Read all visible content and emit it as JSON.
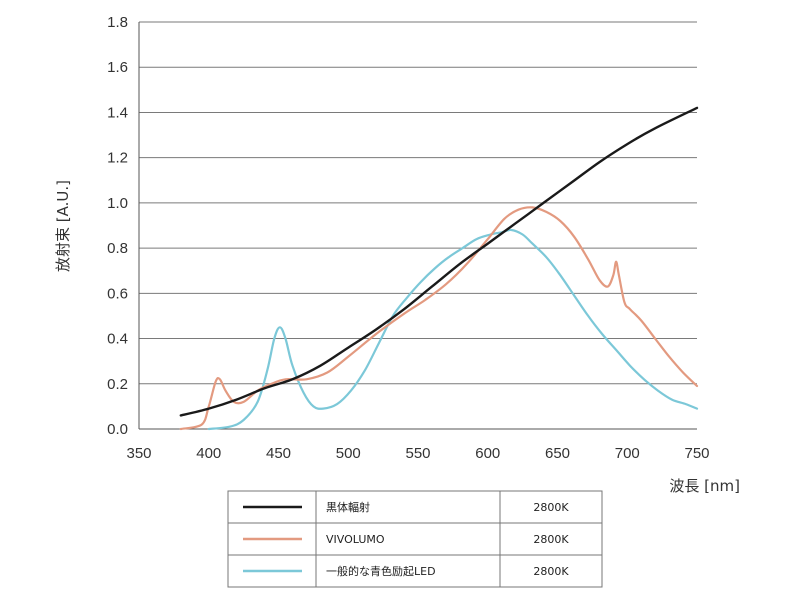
{
  "chart_data": {
    "type": "line",
    "title": "",
    "xlabel": "波長 [nm]",
    "ylabel": "放射束 [A.U.]",
    "xlim": [
      350,
      750
    ],
    "ylim": [
      0,
      1.8
    ],
    "x_ticks": [
      "350",
      "400",
      "450",
      "500",
      "550",
      "600",
      "650",
      "700",
      "750"
    ],
    "y_ticks": [
      "0.0",
      "0.2",
      "0.4",
      "0.6",
      "0.8",
      "1.0",
      "1.2",
      "1.4",
      "1.6",
      "1.8"
    ],
    "grid": "horizontal",
    "legend_position": "bottom-center",
    "series": [
      {
        "name": "黒体輻射",
        "value_label": "2800K",
        "color": "#1a1a1a",
        "points": [
          [
            380,
            0.06
          ],
          [
            400,
            0.09
          ],
          [
            420,
            0.13
          ],
          [
            440,
            0.18
          ],
          [
            460,
            0.22
          ],
          [
            480,
            0.28
          ],
          [
            500,
            0.36
          ],
          [
            520,
            0.44
          ],
          [
            540,
            0.53
          ],
          [
            560,
            0.63
          ],
          [
            580,
            0.73
          ],
          [
            600,
            0.82
          ],
          [
            620,
            0.91
          ],
          [
            640,
            1.0
          ],
          [
            660,
            1.09
          ],
          [
            680,
            1.18
          ],
          [
            700,
            1.26
          ],
          [
            720,
            1.33
          ],
          [
            750,
            1.42
          ]
        ]
      },
      {
        "name": "VIVOLUMO",
        "value_label": "2800K",
        "color": "#e39a80",
        "points": [
          [
            380,
            0.0
          ],
          [
            395,
            0.02
          ],
          [
            400,
            0.1
          ],
          [
            405,
            0.21
          ],
          [
            408,
            0.22
          ],
          [
            412,
            0.17
          ],
          [
            418,
            0.12
          ],
          [
            425,
            0.12
          ],
          [
            435,
            0.17
          ],
          [
            445,
            0.2
          ],
          [
            455,
            0.22
          ],
          [
            470,
            0.22
          ],
          [
            485,
            0.25
          ],
          [
            500,
            0.32
          ],
          [
            520,
            0.42
          ],
          [
            540,
            0.51
          ],
          [
            555,
            0.57
          ],
          [
            570,
            0.64
          ],
          [
            585,
            0.73
          ],
          [
            600,
            0.84
          ],
          [
            612,
            0.93
          ],
          [
            622,
            0.97
          ],
          [
            632,
            0.98
          ],
          [
            642,
            0.96
          ],
          [
            652,
            0.92
          ],
          [
            662,
            0.85
          ],
          [
            672,
            0.75
          ],
          [
            680,
            0.66
          ],
          [
            686,
            0.63
          ],
          [
            690,
            0.68
          ],
          [
            692,
            0.74
          ],
          [
            694,
            0.68
          ],
          [
            698,
            0.56
          ],
          [
            702,
            0.53
          ],
          [
            710,
            0.48
          ],
          [
            720,
            0.4
          ],
          [
            730,
            0.32
          ],
          [
            740,
            0.25
          ],
          [
            750,
            0.19
          ]
        ]
      },
      {
        "name": "一般的な青色励起LED",
        "value_label": "2800K",
        "color": "#7cc8d8",
        "points": [
          [
            400,
            0.0
          ],
          [
            415,
            0.01
          ],
          [
            425,
            0.04
          ],
          [
            435,
            0.12
          ],
          [
            442,
            0.26
          ],
          [
            447,
            0.4
          ],
          [
            451,
            0.45
          ],
          [
            455,
            0.4
          ],
          [
            460,
            0.28
          ],
          [
            468,
            0.16
          ],
          [
            475,
            0.1
          ],
          [
            482,
            0.09
          ],
          [
            492,
            0.11
          ],
          [
            502,
            0.17
          ],
          [
            512,
            0.26
          ],
          [
            522,
            0.38
          ],
          [
            532,
            0.5
          ],
          [
            542,
            0.58
          ],
          [
            552,
            0.65
          ],
          [
            562,
            0.71
          ],
          [
            572,
            0.76
          ],
          [
            582,
            0.8
          ],
          [
            592,
            0.84
          ],
          [
            602,
            0.86
          ],
          [
            610,
            0.87
          ],
          [
            617,
            0.88
          ],
          [
            625,
            0.86
          ],
          [
            632,
            0.82
          ],
          [
            642,
            0.76
          ],
          [
            652,
            0.68
          ],
          [
            662,
            0.59
          ],
          [
            672,
            0.5
          ],
          [
            682,
            0.42
          ],
          [
            692,
            0.35
          ],
          [
            702,
            0.28
          ],
          [
            712,
            0.22
          ],
          [
            722,
            0.17
          ],
          [
            732,
            0.13
          ],
          [
            742,
            0.11
          ],
          [
            750,
            0.09
          ]
        ]
      }
    ]
  }
}
